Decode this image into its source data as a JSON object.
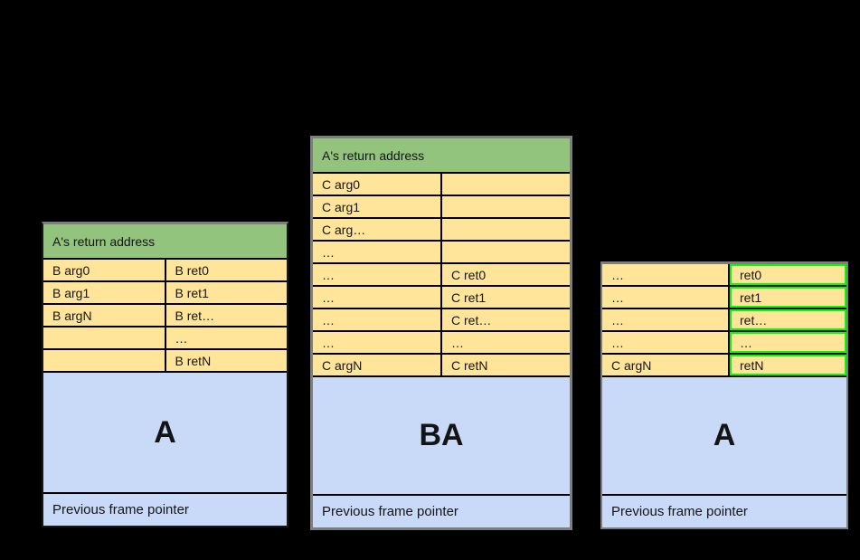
{
  "background_color": "#000000",
  "colors": {
    "header_green": "#93c47d",
    "cell_yellow": "#ffe599",
    "frame_blue": "#c9daf8",
    "highlight_border_green": "#00ff00",
    "table_outline_gray": "#7e7e7e",
    "cell_border_black": "#000000",
    "text_color": "#141414"
  },
  "stacks": [
    {
      "id": "left",
      "header": "A's return address",
      "rows": [
        {
          "left": "B arg0",
          "right": "B ret0"
        },
        {
          "left": "B arg1",
          "right": "B ret1"
        },
        {
          "left": "B argN",
          "right": "B ret…"
        },
        {
          "left": "",
          "right": "…"
        },
        {
          "left": "",
          "right": "B retN"
        }
      ],
      "frame_label": "A",
      "footer": "Previous frame pointer"
    },
    {
      "id": "middle",
      "header": "A's return address",
      "rows": [
        {
          "left": "C arg0",
          "right": ""
        },
        {
          "left": "C arg1",
          "right": ""
        },
        {
          "left": "C arg…",
          "right": ""
        },
        {
          "left": "…",
          "right": ""
        },
        {
          "left": "…",
          "right": "C ret0"
        },
        {
          "left": "…",
          "right": "C ret1"
        },
        {
          "left": "…",
          "right": "C ret…"
        },
        {
          "left": "…",
          "right": "…"
        },
        {
          "left": "C argN",
          "right": "C retN"
        }
      ],
      "frame_label": "BA",
      "footer": "Previous frame pointer"
    },
    {
      "id": "right",
      "header": null,
      "rows": [
        {
          "left": "…",
          "right": "ret0"
        },
        {
          "left": "…",
          "right": "ret1"
        },
        {
          "left": "…",
          "right": "ret…"
        },
        {
          "left": "…",
          "right": "…"
        },
        {
          "left": "C argN",
          "right": "retN"
        }
      ],
      "frame_label": "A",
      "footer": "Previous frame pointer"
    }
  ]
}
